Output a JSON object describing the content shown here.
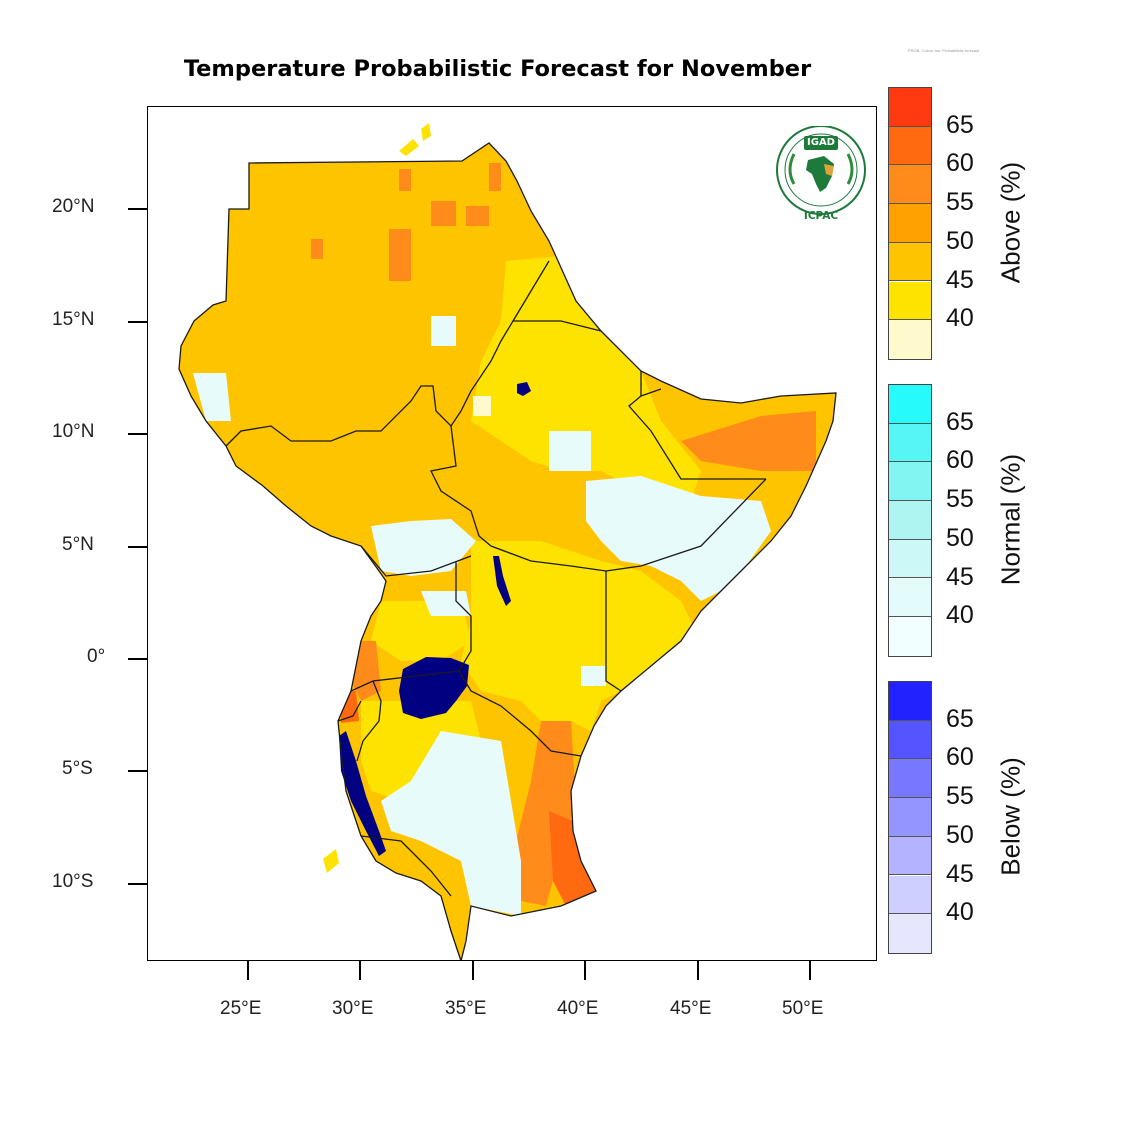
{
  "title": "Temperature Probabilistic Forecast for November",
  "map": {
    "lat_ticks": [
      "20°N",
      "15°N",
      "10°N",
      "5°N",
      "0°",
      "5°S",
      "10°S"
    ],
    "lon_ticks": [
      "25°E",
      "30°E",
      "35°E",
      "40°E",
      "45°E",
      "50°E"
    ],
    "lake_color": "#000080",
    "border_color": "#1a1a1a"
  },
  "logo": {
    "acronym": "IGAD",
    "org": "ICPAC",
    "icon": "igad-logo-icon"
  },
  "tiny_note": "PROB. Colour bar, Probabilistic forecast",
  "legends": [
    {
      "title": "Above (%)",
      "values": [
        "65",
        "60",
        "55",
        "50",
        "45",
        "40"
      ],
      "colors": [
        "#ff3a10",
        "#ff6a10",
        "#ff8c1a",
        "#ffa100",
        "#ffc400",
        "#ffe300",
        "#fffacd"
      ]
    },
    {
      "title": "Normal (%)",
      "values": [
        "65",
        "60",
        "55",
        "50",
        "45",
        "40"
      ],
      "colors": [
        "#27fafa",
        "#56f6f6",
        "#82f4f2",
        "#aef5f2",
        "#cdf8f8",
        "#e4fbfb",
        "#f2ffff"
      ]
    },
    {
      "title": "Below (%)",
      "values": [
        "65",
        "60",
        "55",
        "50",
        "45",
        "40"
      ],
      "colors": [
        "#2222ff",
        "#5555ff",
        "#7777ff",
        "#9595ff",
        "#b3b3ff",
        "#cfcfff",
        "#e6e6ff"
      ]
    }
  ]
}
